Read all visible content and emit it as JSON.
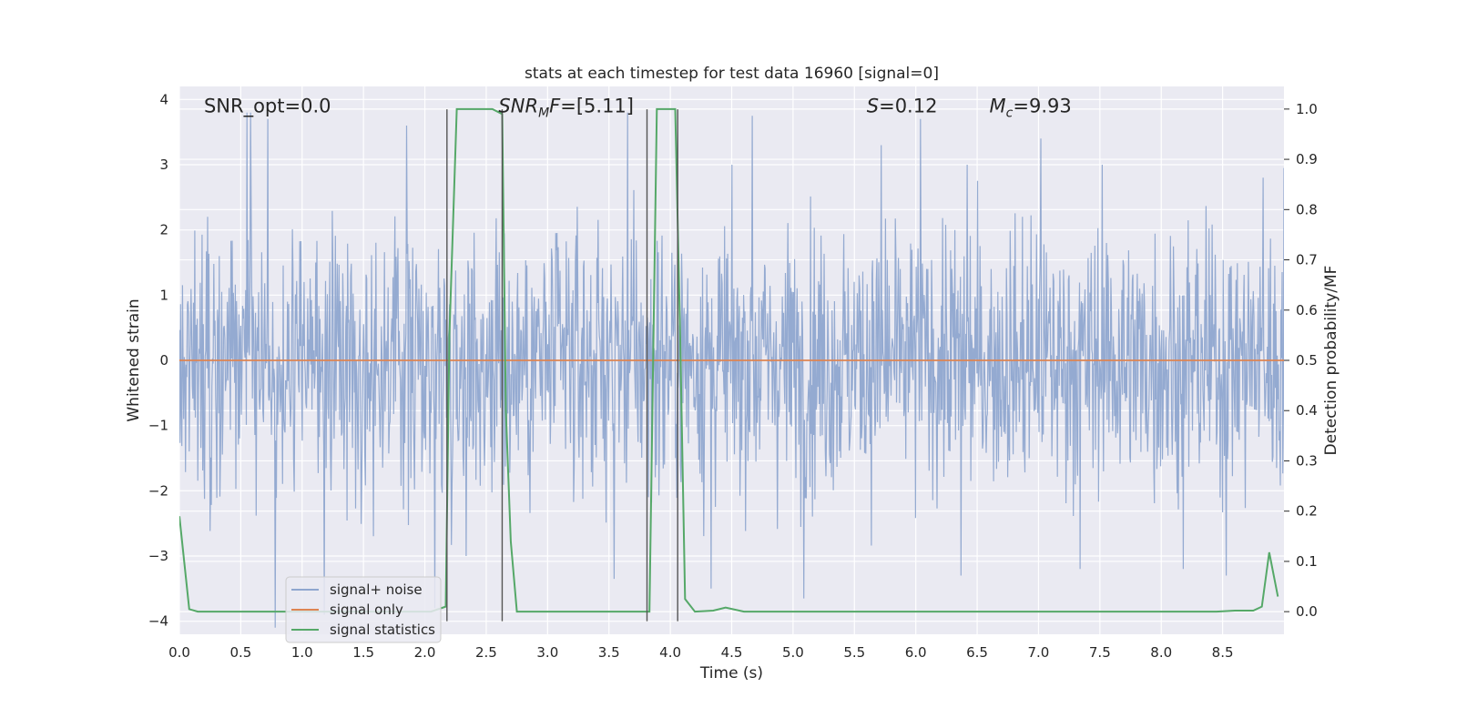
{
  "chart_data": {
    "type": "line",
    "title": "stats at each timestep for test data 16960 [signal=0]",
    "xlabel": "Time (s)",
    "ylabel": "Whitened strain",
    "y2label": "Detection probability/MF",
    "xlim": [
      0.0,
      9.0
    ],
    "ylim": [
      -4.2,
      4.2
    ],
    "y2lim": [
      -0.045,
      1.045
    ],
    "xticks": [
      0.0,
      0.5,
      1.0,
      1.5,
      2.0,
      2.5,
      3.0,
      3.5,
      4.0,
      4.5,
      5.0,
      5.5,
      6.0,
      6.5,
      7.0,
      7.5,
      8.0,
      8.5
    ],
    "xtick_labels": [
      "0.0",
      "0.5",
      "1.0",
      "1.5",
      "2.0",
      "2.5",
      "3.0",
      "3.5",
      "4.0",
      "4.5",
      "5.0",
      "5.5",
      "6.0",
      "6.5",
      "7.0",
      "7.5",
      "8.0",
      "8.5"
    ],
    "yticks": [
      4,
      3,
      2,
      1,
      0,
      -1,
      -2,
      -3,
      -4
    ],
    "ytick_labels": [
      "4",
      "3",
      "2",
      "1",
      "0",
      "−1",
      "−2",
      "−3",
      "−4"
    ],
    "y2ticks": [
      1.0,
      0.9,
      0.8,
      0.7,
      0.6,
      0.5,
      0.4,
      0.3,
      0.2,
      0.1,
      0.0
    ],
    "y2tick_labels": [
      "1.0",
      "0.9",
      "0.8",
      "0.7",
      "0.6",
      "0.5",
      "0.4",
      "0.3",
      "0.2",
      "0.1",
      "0.0"
    ],
    "grid": true,
    "legend_position": "lower-left",
    "annotations": [
      {
        "kind": "plain",
        "text": "SNR_opt=0.0",
        "x": 0.2,
        "y": 3.9
      },
      {
        "kind": "snr_mf",
        "main": "SNR",
        "sub": "M",
        "rest": "F=[5.11]",
        "x": 2.6,
        "y": 3.9
      },
      {
        "kind": "italic_var",
        "var": "S",
        "rest": "=0.12",
        "x": 5.6,
        "y": 3.9
      },
      {
        "kind": "sub_var",
        "var": "M",
        "sub": "c",
        "rest": "=9.93",
        "x": 6.6,
        "y": 3.9
      }
    ],
    "vlines": [
      2.18,
      2.63,
      3.81,
      4.06
    ],
    "vline_range": [
      -4.0,
      3.85
    ],
    "series": [
      {
        "name": "signal+ noise",
        "axis": "left",
        "color": "#8fa6cf",
        "kind": "noise",
        "samples": 1800,
        "spike_peaks": [
          [
            0.55,
            3.8
          ],
          [
            0.58,
            3.8
          ],
          [
            0.72,
            3.7
          ],
          [
            1.85,
            3.6
          ],
          [
            3.65,
            3.8
          ],
          [
            4.67,
            3.75
          ],
          [
            5.72,
            3.3
          ],
          [
            6.04,
            3.7
          ],
          [
            6.42,
            3.0
          ],
          [
            7.02,
            3.4
          ],
          [
            7.52,
            3.0
          ],
          [
            8.83,
            2.8
          ],
          [
            9.0,
            2.95
          ],
          [
            0.78,
            -4.1
          ],
          [
            1.18,
            -3.9
          ],
          [
            2.08,
            -3.8
          ],
          [
            3.54,
            -3.35
          ],
          [
            4.33,
            -3.5
          ],
          [
            5.09,
            -3.65
          ],
          [
            6.37,
            -3.3
          ],
          [
            7.34,
            -3.2
          ],
          [
            8.18,
            -3.2
          ],
          [
            8.53,
            -3.3
          ]
        ]
      },
      {
        "name": "signal only",
        "axis": "left",
        "color": "#dd8452",
        "kind": "line",
        "x": [
          0.0,
          9.0
        ],
        "y": [
          0.0,
          0.0
        ]
      },
      {
        "name": "signal statistics",
        "axis": "right",
        "color": "#55a868",
        "kind": "line",
        "x": [
          0.0,
          0.08,
          0.15,
          0.3,
          2.05,
          2.17,
          2.2,
          2.26,
          2.55,
          2.63,
          2.66,
          2.7,
          2.75,
          3.8,
          3.83,
          3.89,
          4.04,
          4.08,
          4.12,
          4.2,
          4.35,
          4.45,
          4.6,
          8.45,
          8.6,
          8.75,
          8.82,
          8.88,
          8.95
        ],
        "y": [
          0.19,
          0.005,
          0.0,
          0.0,
          0.0,
          0.01,
          0.55,
          1.0,
          1.0,
          0.99,
          0.4,
          0.14,
          0.0,
          0.0,
          0.0,
          1.0,
          1.0,
          0.55,
          0.025,
          0.0,
          0.002,
          0.008,
          0.0,
          0.0,
          0.002,
          0.002,
          0.01,
          0.118,
          0.03
        ]
      }
    ]
  }
}
